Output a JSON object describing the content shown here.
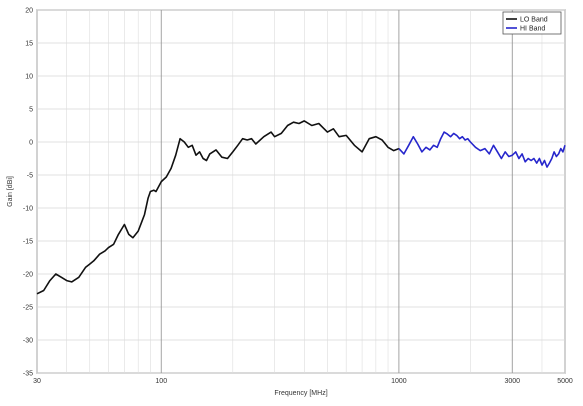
{
  "chart_data": {
    "type": "line",
    "xscale": "log",
    "xlim": [
      30,
      5000
    ],
    "ylim": [
      -35,
      20
    ],
    "xlabel": "Frequency [MHz]",
    "ylabel": "Gain [dBi]",
    "xticks": [
      30,
      100,
      1000,
      3000,
      5000
    ],
    "xtick_labels": [
      "30",
      "100",
      "1000",
      "3000",
      "5000"
    ],
    "yticks": [
      -35,
      -30,
      -25,
      -20,
      -15,
      -10,
      -5,
      0,
      5,
      10,
      15,
      20
    ],
    "ytick_labels": [
      "-35",
      "-30",
      "-25",
      "-20",
      "-15",
      "-10",
      "-5",
      "0",
      "5",
      "10",
      "15",
      "20"
    ],
    "grid": true,
    "legend": "top-right",
    "series": [
      {
        "name": "LO Band",
        "color": "#111111",
        "x": [
          30,
          32,
          34,
          36,
          38,
          40,
          42,
          45,
          48,
          50,
          52,
          55,
          58,
          60,
          63,
          66,
          70,
          73,
          76,
          80,
          83,
          85,
          88,
          90,
          93,
          95,
          100,
          105,
          110,
          115,
          120,
          125,
          130,
          135,
          140,
          145,
          150,
          155,
          160,
          165,
          170,
          180,
          190,
          200,
          210,
          220,
          230,
          240,
          250,
          270,
          290,
          300,
          320,
          340,
          360,
          380,
          400,
          430,
          460,
          500,
          530,
          560,
          600,
          650,
          700,
          750,
          800,
          850,
          900,
          950,
          1000
        ],
        "y": [
          -23,
          -22.5,
          -21,
          -20,
          -20.5,
          -21,
          -21.2,
          -20.5,
          -19,
          -18.5,
          -18,
          -17,
          -16.5,
          -16,
          -15.5,
          -14,
          -12.5,
          -14,
          -14.5,
          -13.5,
          -12,
          -11,
          -8.5,
          -7.5,
          -7.3,
          -7.5,
          -6,
          -5.3,
          -4,
          -2,
          0.5,
          0,
          -0.8,
          -0.5,
          -2,
          -1.5,
          -2.5,
          -2.8,
          -1.8,
          -1.5,
          -1.2,
          -2.3,
          -2.5,
          -1.5,
          -0.5,
          0.5,
          0.3,
          0.5,
          -0.3,
          0.8,
          1.5,
          0.8,
          1.3,
          2.5,
          3,
          2.8,
          3.2,
          2.5,
          2.8,
          1.5,
          2,
          0.8,
          1,
          -0.5,
          -1.5,
          0.5,
          0.8,
          0.3,
          -0.8,
          -1.3,
          -1
        ]
      },
      {
        "name": "HI Band",
        "color": "#2626cc",
        "x": [
          1000,
          1050,
          1100,
          1150,
          1200,
          1250,
          1300,
          1350,
          1400,
          1450,
          1500,
          1550,
          1600,
          1650,
          1700,
          1750,
          1800,
          1850,
          1900,
          1950,
          2000,
          2100,
          2200,
          2300,
          2400,
          2500,
          2600,
          2700,
          2800,
          2900,
          3000,
          3100,
          3200,
          3300,
          3400,
          3500,
          3600,
          3700,
          3800,
          3900,
          4000,
          4100,
          4200,
          4300,
          4400,
          4500,
          4600,
          4700,
          4800,
          4900,
          5000
        ],
        "y": [
          -1,
          -1.8,
          -0.5,
          0.8,
          -0.3,
          -1.5,
          -0.8,
          -1.2,
          -0.5,
          -0.8,
          0.5,
          1.5,
          1.2,
          0.8,
          1.3,
          1,
          0.5,
          0.8,
          0.3,
          0.5,
          0,
          -0.8,
          -1.3,
          -1,
          -1.8,
          -0.5,
          -1.5,
          -2.5,
          -1.5,
          -2.2,
          -2,
          -1.5,
          -2.5,
          -1.8,
          -3,
          -2.5,
          -2.8,
          -2.5,
          -3.2,
          -2.5,
          -3.5,
          -2.8,
          -3.8,
          -3.2,
          -2.5,
          -1.5,
          -2.2,
          -1.8,
          -1,
          -1.5,
          -0.5
        ]
      }
    ]
  }
}
